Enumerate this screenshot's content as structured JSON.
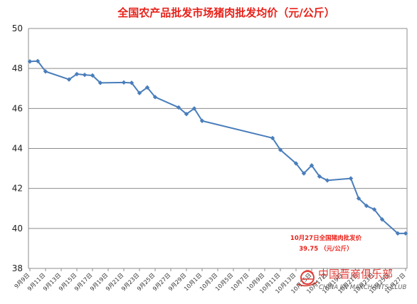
{
  "chart_data": {
    "type": "line",
    "title": "全国农产品批发市场猪肉批发均价（元/公斤）",
    "xlabel": "",
    "ylabel": "",
    "ylim": [
      38,
      50
    ],
    "yticks": [
      "38",
      "40",
      "42",
      "44",
      "46",
      "48",
      "50"
    ],
    "grid": "horizontal",
    "legend": "none",
    "color": "#4a7ebb",
    "x_tick_labels": [
      "9月9日",
      "9月11日",
      "9月13日",
      "9月15日",
      "9月17日",
      "9月19日",
      "9月21日",
      "9月23日",
      "9月25日",
      "9月27日",
      "9月29日",
      "10月1日",
      "10月3日",
      "10月5日",
      "10月7日",
      "10月9日",
      "10月11日",
      "10月13日",
      "10月15日",
      "10月17日",
      "10月19日",
      "10月21日",
      "10月23日",
      "10月25日",
      "10月27日"
    ],
    "points": [
      {
        "x": "9月9日",
        "y": 48.35
      },
      {
        "x": "9月10日",
        "y": 48.37
      },
      {
        "x": "9月11日",
        "y": 47.85
      },
      {
        "x": "9月14日",
        "y": 47.45
      },
      {
        "x": "9月15日",
        "y": 47.72
      },
      {
        "x": "9月16日",
        "y": 47.68
      },
      {
        "x": "9月17日",
        "y": 47.65
      },
      {
        "x": "9月18日",
        "y": 47.28
      },
      {
        "x": "9月21日",
        "y": 47.3
      },
      {
        "x": "9月22日",
        "y": 47.28
      },
      {
        "x": "9月23日",
        "y": 46.77
      },
      {
        "x": "9月24日",
        "y": 47.05
      },
      {
        "x": "9月25日",
        "y": 46.57
      },
      {
        "x": "9月28日",
        "y": 46.05
      },
      {
        "x": "9月29日",
        "y": 45.72
      },
      {
        "x": "9月30日",
        "y": 46.0
      },
      {
        "x": "10月1日",
        "y": 45.38
      },
      {
        "x": "10月10日",
        "y": 44.52
      },
      {
        "x": "10月11日",
        "y": 43.93
      },
      {
        "x": "10月13日",
        "y": 43.25
      },
      {
        "x": "10月14日",
        "y": 42.75
      },
      {
        "x": "10月15日",
        "y": 43.15
      },
      {
        "x": "10月16日",
        "y": 42.6
      },
      {
        "x": "10月17日",
        "y": 42.4
      },
      {
        "x": "10月20日",
        "y": 42.5
      },
      {
        "x": "10月21日",
        "y": 41.5
      },
      {
        "x": "10月22日",
        "y": 41.13
      },
      {
        "x": "10月23日",
        "y": 40.95
      },
      {
        "x": "10月24日",
        "y": 40.45
      },
      {
        "x": "10月26日",
        "y": 39.75
      },
      {
        "x": "10月27日",
        "y": 39.75
      }
    ],
    "annotation": {
      "line1": "10月27日全国猪肉批发价",
      "line2": "39.75 （元/公斤）"
    }
  },
  "watermark": {
    "cn": "中国晋商俱乐部",
    "en": "CHINA JIN MARCHANTS CLUB"
  }
}
